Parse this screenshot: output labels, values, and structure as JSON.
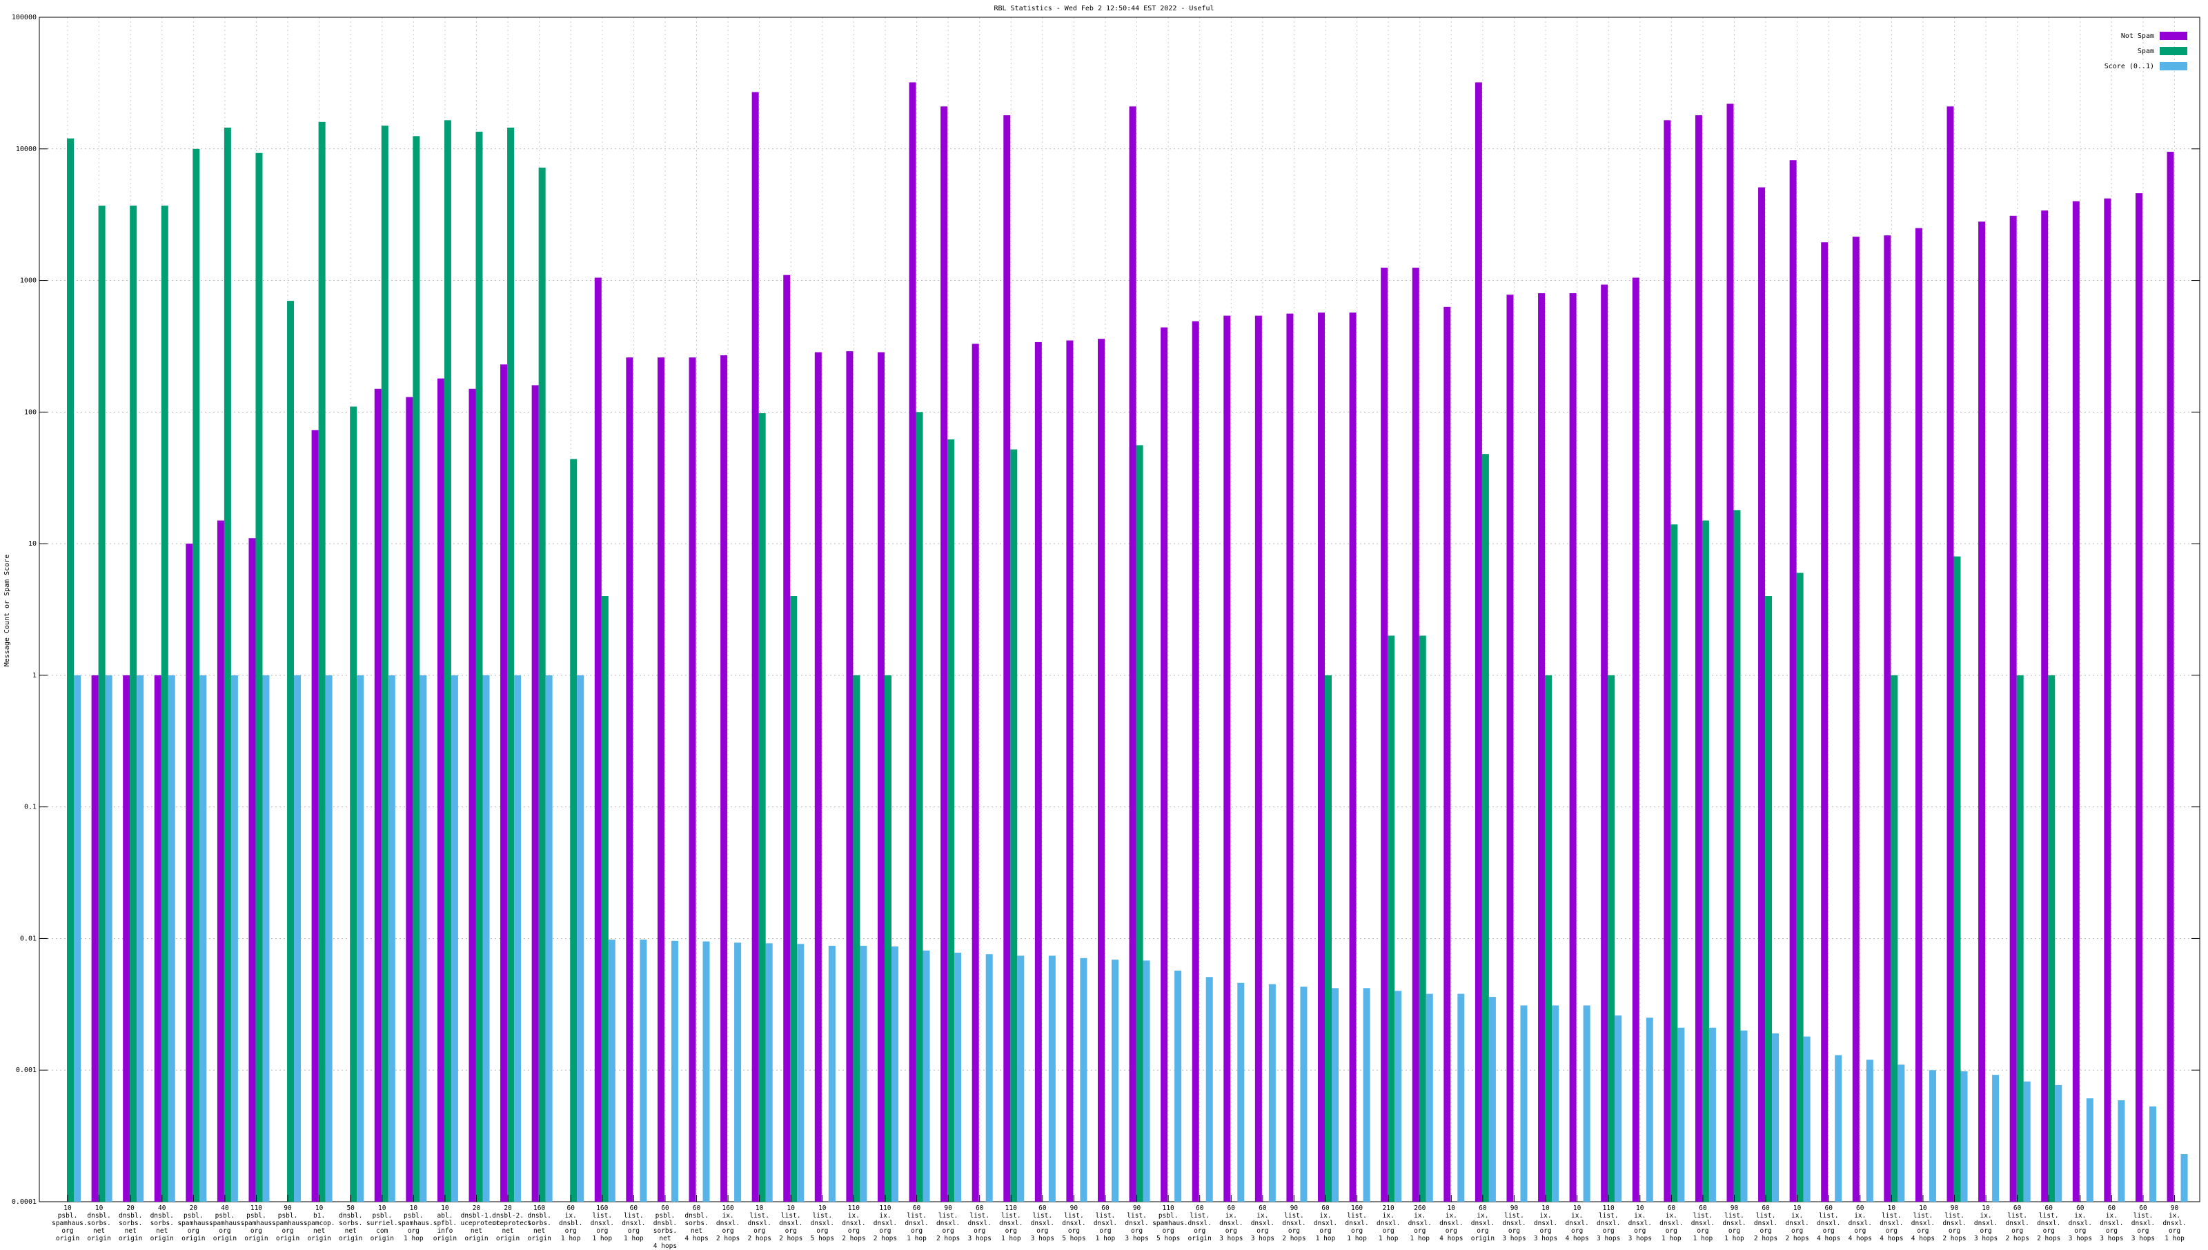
{
  "chart_data": {
    "type": "bar",
    "title": "RBL Statistics - Wed Feb  2 12:50:44 EST 2022 - Useful",
    "y_label": "Message Count or Spam Score",
    "log_scale": true,
    "grid": true,
    "legend_position": "top-right",
    "ylim": [
      0.0001,
      100000
    ],
    "yticks": [
      0.0001,
      0.001,
      0.01,
      0.1,
      1,
      10,
      100,
      1000,
      10000,
      100000
    ],
    "categories": [
      "10\npsbl.\nspamhaus.\norg\norigin",
      "10\ndnsbl.\nsorbs.\nnet\norigin",
      "20\ndnsbl.\nsorbs.\nnet\norigin",
      "40\ndnsbl.\nsorbs.\nnet\norigin",
      "20\npsbl.\nspamhaus.\norg\norigin",
      "40\npsbl.\nspamhaus.\norg\norigin",
      "110\npsbl.\nspamhaus.\norg\norigin",
      "90\npsbl.\nspamhaus.\norg\norigin",
      "10\nb1.\nspamcop.\nnet\norigin",
      "50\ndnsbl.\nsorbs.\nnet\norigin",
      "10\npsbl.\nsurriel.\ncom\norigin",
      "10\npsbl.\nspamhaus.\norg\n1 hop",
      "10\nabl.\nspfbl.\ninfo\norigin",
      "20\ndnsbl-1.\nuceprotect.\nnet\norigin",
      "20\ndnsbl-2.\nuceprotect.\nnet\norigin",
      "160\ndnsbl.\nsorbs.\nnet\norigin",
      "60\nix.\ndnsbl.\norg\n1 hop",
      "160\nlist.\ndnsxl.\norg\n1 hop",
      "60\nlist.\ndnsxl.\norg\n1 hop",
      "60\npsbl.\ndnsbl.\nsorbs.\nnet\n4 hops",
      "60\ndnsbl.\nsorbs.\nnet\n4 hops",
      "160\nix.\ndnsxl.\norg\n2 hops",
      "10\nlist.\ndnsxl.\norg\n2 hops",
      "10\nlist.\ndnsxl.\norg\n2 hops",
      "10\nlist.\ndnsxl.\norg\n5 hops",
      "110\nix.\ndnsxl.\norg\n2 hops",
      "110\nix.\ndnsxl.\norg\n2 hops",
      "60\nlist.\ndnsxl.\norg\n1 hop",
      "90\nlist.\ndnsxl.\norg\n2 hops",
      "60\nlist.\ndnsxl.\norg\n3 hops",
      "110\nlist.\ndnsxl.\norg\n1 hop",
      "60\nlist.\ndnsxl.\norg\n3 hops",
      "90\nlist.\ndnsxl.\norg\n5 hops",
      "60\nlist.\ndnsxl.\norg\n1 hop",
      "90\nlist.\ndnsxl.\norg\n3 hops",
      "110\npsbl.\nspamhaus.\norg\n5 hops",
      "60\nlist.\ndnsxl.\norg\norigin",
      "60\nix.\ndnsxl.\norg\n3 hops",
      "60\nix.\ndnsxl.\norg\n3 hops",
      "90\nlist.\ndnsxl.\norg\n2 hops",
      "60\nix.\ndnsxl.\norg\n1 hop",
      "160\nlist.\ndnsxl.\norg\n1 hop",
      "210\nix.\ndnsxl.\norg\n1 hop",
      "260\nix.\ndnsxl.\norg\n1 hop",
      "10\nix.\ndnsxl.\norg\n4 hops",
      "60\nix.\ndnsxl.\norg\norigin",
      "90\nlist.\ndnsxl.\norg\n3 hops",
      "10\nix.\ndnsxl.\norg\n3 hops",
      "10\nix.\ndnsxl.\norg\n4 hops",
      "110\nlist.\ndnsxl.\norg\n3 hops",
      "10\nix.\ndnsxl.\norg\n3 hops",
      "60\nix.\ndnsxl.\norg\n1 hop",
      "60\nlist.\ndnsxl.\norg\n1 hop",
      "90\nlist.\ndnsxl.\norg\n1 hop",
      "60\nlist.\ndnsxl.\norg\n2 hops",
      "10\nix.\ndnsxl.\norg\n2 hops",
      "60\nlist.\ndnsxl.\norg\n4 hops",
      "60\nix.\ndnsxl.\norg\n4 hops",
      "10\nlist.\ndnsxl.\norg\n4 hops",
      "10\nlist.\ndnsxl.\norg\n4 hops",
      "90\nlist.\ndnsxl.\norg\n2 hops",
      "10\nix.\ndnsxl.\norg\n3 hops",
      "60\nlist.\ndnsxl.\norg\n2 hops",
      "60\nlist.\ndnsxl.\norg\n2 hops",
      "60\nix.\ndnsxl.\norg\n3 hops",
      "60\nix.\ndnsxl.\norg\n3 hops",
      "60\nlist.\ndnsxl.\norg\n3 hops",
      "90\nix.\ndnsxl.\norg\n1 hop"
    ],
    "series": [
      {
        "name": "Not Spam",
        "color": "#9400d3",
        "values": [
          null,
          1,
          1,
          1,
          10,
          15,
          11,
          null,
          73,
          null,
          150,
          130,
          180,
          150,
          230,
          160,
          null,
          1050,
          260,
          260,
          260,
          270,
          27000,
          1100,
          285,
          290,
          285,
          32000,
          21000,
          330,
          18000,
          340,
          350,
          360,
          21000,
          440,
          490,
          540,
          540,
          560,
          570,
          570,
          1250,
          1250,
          630,
          32000,
          780,
          800,
          800,
          930,
          1050,
          16500,
          18000,
          22000,
          5100,
          8200,
          1950,
          2150,
          2200,
          2500,
          21000,
          2800,
          3100,
          3400,
          4000,
          4200,
          4600,
          9500
        ]
      },
      {
        "name": "Spam",
        "color": "#009e73",
        "values": [
          12000,
          3700,
          3700,
          3700,
          10000,
          14500,
          9300,
          700,
          16000,
          110,
          15000,
          12500,
          16500,
          13500,
          14500,
          7200,
          44,
          4,
          null,
          null,
          null,
          null,
          98,
          4,
          null,
          1,
          1,
          100,
          62,
          null,
          52,
          null,
          null,
          null,
          56,
          null,
          null,
          null,
          null,
          null,
          1,
          null,
          2,
          2,
          null,
          48,
          null,
          1,
          null,
          1,
          null,
          14,
          15,
          18,
          4,
          6,
          null,
          null,
          1,
          null,
          8,
          null,
          1,
          1,
          null,
          null,
          null,
          null
        ]
      },
      {
        "name": "Score (0..1)",
        "color": "#56b4e9",
        "values": [
          1,
          1,
          1,
          1,
          1,
          1,
          1,
          1,
          1,
          1,
          1,
          1,
          1,
          1,
          1,
          1,
          1,
          0.0098,
          0.0098,
          0.0096,
          0.0095,
          0.0093,
          0.0092,
          0.0091,
          0.0088,
          0.0088,
          0.0087,
          0.0081,
          0.0078,
          0.0076,
          0.0074,
          0.0074,
          0.0071,
          0.0069,
          0.0068,
          0.0057,
          0.0051,
          0.0046,
          0.0045,
          0.0043,
          0.0042,
          0.0042,
          0.004,
          0.0038,
          0.0038,
          0.0036,
          0.0031,
          0.0031,
          0.0031,
          0.0026,
          0.0025,
          0.0021,
          0.0021,
          0.002,
          0.0019,
          0.0018,
          0.0013,
          0.0012,
          0.0011,
          0.001,
          0.00098,
          0.00092,
          0.00082,
          0.00077,
          0.00061,
          0.00059,
          0.00053,
          0.00023
        ]
      }
    ]
  }
}
